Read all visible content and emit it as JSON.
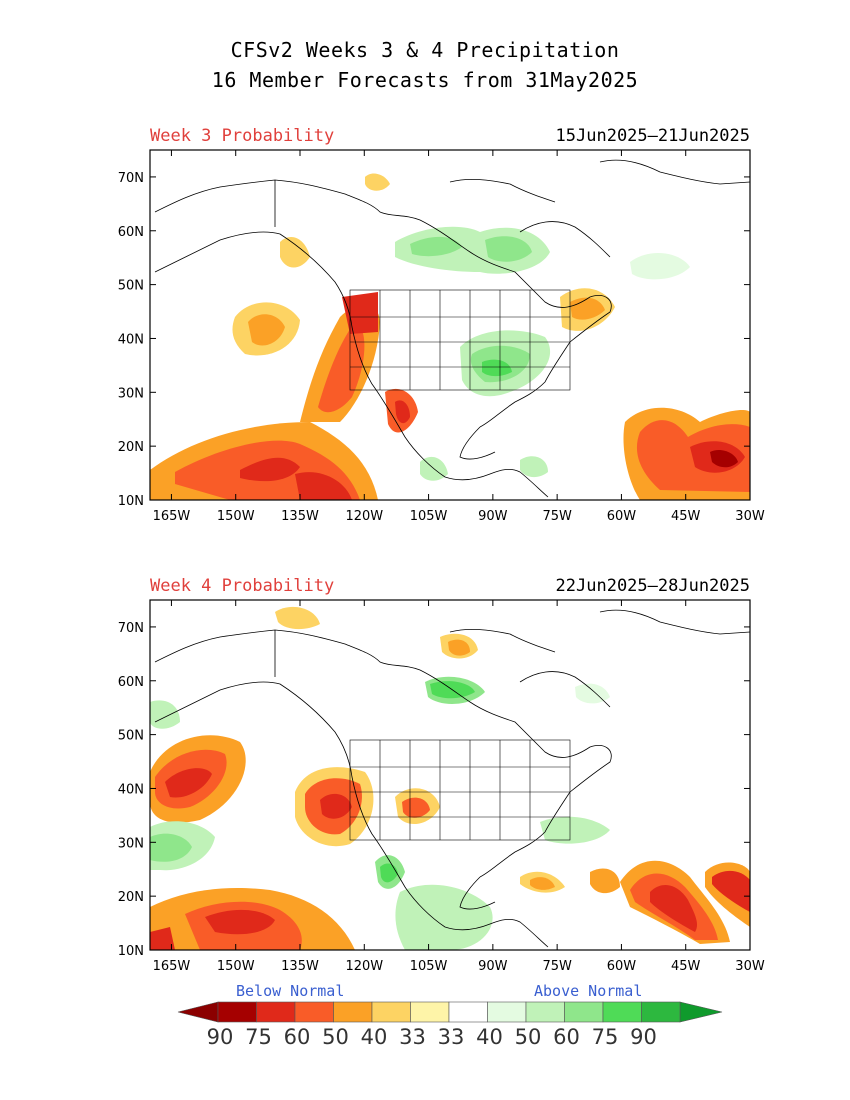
{
  "title": "CFSv2 Weeks 3 & 4 Precipitation",
  "subtitle": "16 Member Forecasts from 31May2025",
  "lon_ticks": [
    "165W",
    "150W",
    "135W",
    "120W",
    "105W",
    "90W",
    "75W",
    "60W",
    "45W",
    "30W"
  ],
  "lat_ticks": [
    "70N",
    "60N",
    "50N",
    "40N",
    "30N",
    "20N",
    "10N"
  ],
  "panels": [
    {
      "label": "Week 3 Probability",
      "dates": "15Jun2025—21Jun2025"
    },
    {
      "label": "Week 4 Probability",
      "dates": "22Jun2025—28Jun2025"
    }
  ],
  "legend": {
    "below_label": "Below Normal",
    "above_label": "Above Normal",
    "values": [
      "90",
      "75",
      "60",
      "50",
      "40",
      "33",
      "33",
      "40",
      "50",
      "60",
      "75",
      "90"
    ],
    "colors": [
      "#a50000",
      "#e0291a",
      "#f95c28",
      "#fba126",
      "#fdd363",
      "#fef4a8",
      "#ffffff",
      "#e4fbe1",
      "#c0f2b8",
      "#8fe68b",
      "#4fdb57",
      "#2db83f"
    ]
  },
  "colors": {
    "title_red": "#e0403c",
    "legend_blue": "#3a5fd0"
  }
}
